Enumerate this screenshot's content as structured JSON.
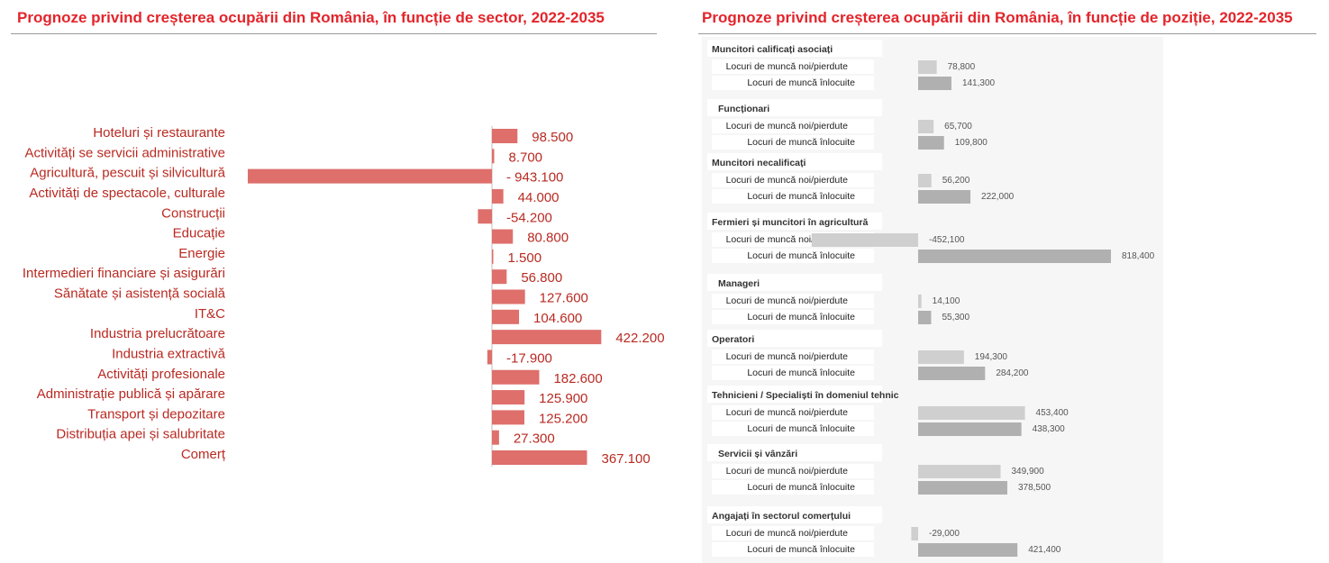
{
  "titles": {
    "left": "Prognoze privind creșterea ocupării din România, în funcție de sector, 2022-2035",
    "right": "Prognoze privind creșterea ocupării din România, în funcție de poziție, 2022-2035"
  },
  "colors": {
    "title": "#e3242b",
    "sector_bar": "#de6f6b",
    "sector_text": "#b92a22",
    "new_jobs": "#cfcfcf",
    "replaced_jobs": "#b0b0b0"
  },
  "chart_data": [
    {
      "type": "bar",
      "orientation": "horizontal",
      "title": "Prognoze privind creșterea ocupării din România, în funcție de sector, 2022-2035",
      "categories": [
        "Hoteluri și restaurante",
        "Activități se servicii administrative",
        "Agricultură, pescuit și silvicultură",
        "Activități de spectacole, culturale",
        "Construcții",
        "Educație",
        "Energie",
        "Intermedieri financiare și asigurări",
        "Sănătate și asistență socială",
        "IT&C",
        "Industria prelucrătoare",
        "Industria extractivă",
        "Activități profesionale",
        "Administrație publică și apărare",
        "Transport și depozitare",
        "Distribuția apei și salubritate",
        "Comerț"
      ],
      "values": [
        98500,
        8700,
        -943100,
        44000,
        -54200,
        80800,
        1500,
        56800,
        127600,
        104600,
        422200,
        -17900,
        182600,
        125900,
        125200,
        27300,
        367100
      ],
      "value_labels": [
        "98.500",
        "8.700",
        "- 943.100",
        "44.000",
        "-54.200",
        "80.800",
        "1.500",
        "56.800",
        "127.600",
        "104.600",
        "422.200",
        "-17.900",
        "182.600",
        "125.900",
        "125.200",
        "27.300",
        "367.100"
      ]
    },
    {
      "type": "bar",
      "orientation": "horizontal",
      "title": "Prognoze privind creșterea ocupării din România, în funcție de poziție, 2022-2035",
      "groups": [
        {
          "name": "Muncitori calificați asociați",
          "rows": [
            {
              "label": "Locuri de muncă noi/pierdute",
              "value": 78800,
              "text": "78,800"
            },
            {
              "label": "Locuri de muncă înlocuite",
              "value": 141300,
              "text": "141,300"
            }
          ]
        },
        {
          "name": "Funcționari",
          "rows": [
            {
              "label": "Locuri de muncă noi/pierdute",
              "value": 65700,
              "text": "65,700"
            },
            {
              "label": "Locuri de muncă înlocuite",
              "value": 109800,
              "text": "109,800"
            }
          ]
        },
        {
          "name": "Muncitori necalificați",
          "rows": [
            {
              "label": "Locuri de muncă noi/pierdute",
              "value": 56200,
              "text": "56,200"
            },
            {
              "label": "Locuri de muncă înlocuite",
              "value": 222000,
              "text": "222,000"
            }
          ]
        },
        {
          "name": "Fermieri și muncitori în agricultură",
          "rows": [
            {
              "label": "Locuri de muncă noi/pierdute",
              "value": -452100,
              "text": "-452,100"
            },
            {
              "label": "Locuri de muncă înlocuite",
              "value": 818400,
              "text": "818,400"
            }
          ]
        },
        {
          "name": "Manageri",
          "rows": [
            {
              "label": "Locuri de muncă noi/pierdute",
              "value": 14100,
              "text": "14,100"
            },
            {
              "label": "Locuri de muncă înlocuite",
              "value": 55300,
              "text": "55,300"
            }
          ]
        },
        {
          "name": "Operatori",
          "rows": [
            {
              "label": "Locuri de muncă noi/pierdute",
              "value": 194300,
              "text": "194,300"
            },
            {
              "label": "Locuri de muncă înlocuite",
              "value": 284200,
              "text": "284,200"
            }
          ]
        },
        {
          "name": "Tehnicieni / Specialiști în domeniul tehnic",
          "rows": [
            {
              "label": "Locuri de muncă noi/pierdute",
              "value": 453400,
              "text": "453,400"
            },
            {
              "label": "Locuri de muncă înlocuite",
              "value": 438300,
              "text": "438,300"
            }
          ]
        },
        {
          "name": "Servicii și vânzări",
          "rows": [
            {
              "label": "Locuri de muncă noi/pierdute",
              "value": 349900,
              "text": "349,900"
            },
            {
              "label": "Locuri de muncă înlocuite",
              "value": 378500,
              "text": "378,500"
            }
          ]
        },
        {
          "name": "Angajați în sectorul comerțului",
          "rows": [
            {
              "label": "Locuri de muncă noi/pierdute",
              "value": -29000,
              "text": "-29,000"
            },
            {
              "label": "Locuri de muncă înlocuite",
              "value": 421400,
              "text": "421,400"
            }
          ]
        }
      ]
    }
  ]
}
